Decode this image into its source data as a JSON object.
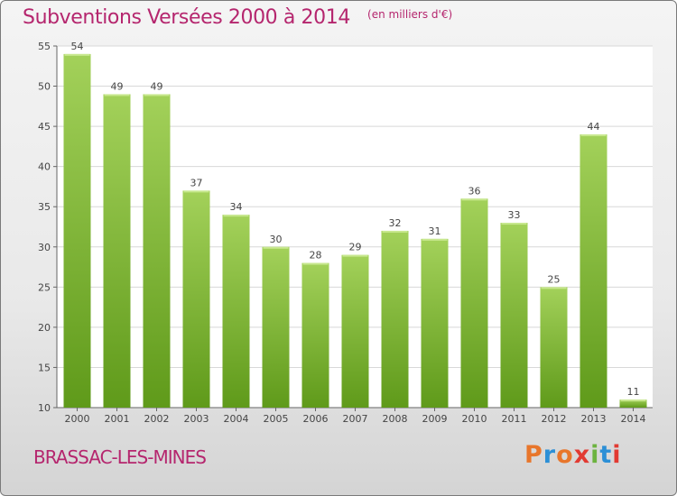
{
  "header": {
    "title": "Subventions Versées 2000 à 2014",
    "subtitle": "(en milliers d'€)"
  },
  "footer": {
    "town": "BRASSAC-LES-MINES",
    "logo_text": "Proxiti"
  },
  "colors": {
    "title": "#b5266e",
    "bar_light": "#a3d15a",
    "bar_dark": "#5f9a1a",
    "logo_letters": [
      "#e8762b",
      "#2c8fd6",
      "#e8762b",
      "#e23a32",
      "#6cb33f",
      "#2c8fd6",
      "#e23a32"
    ]
  },
  "chart_data": {
    "type": "bar",
    "categories": [
      "2000",
      "2001",
      "2002",
      "2003",
      "2004",
      "2005",
      "2006",
      "2007",
      "2008",
      "2009",
      "2010",
      "2011",
      "2012",
      "2013",
      "2014"
    ],
    "values": [
      54,
      49,
      49,
      37,
      34,
      30,
      28,
      29,
      32,
      31,
      36,
      33,
      25,
      44,
      11
    ],
    "ylim": [
      10,
      55
    ],
    "yticks": [
      10,
      15,
      20,
      25,
      30,
      35,
      40,
      45,
      50,
      55
    ],
    "grid": "horizontal",
    "xlabel": "",
    "ylabel": ""
  }
}
